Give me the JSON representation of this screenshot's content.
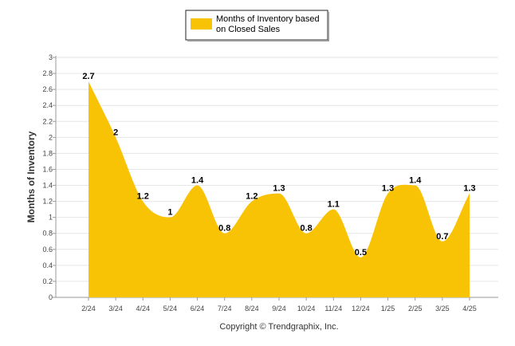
{
  "chart_data": {
    "type": "area",
    "categories": [
      "2/24",
      "3/24",
      "4/24",
      "5/24",
      "6/24",
      "7/24",
      "8/24",
      "9/24",
      "10/24",
      "11/24",
      "12/24",
      "1/25",
      "2/25",
      "3/25",
      "4/25"
    ],
    "series": [
      {
        "name": "Months of Inventory based on Closed Sales",
        "values": [
          2.7,
          2,
          1.2,
          1,
          1.4,
          0.8,
          1.2,
          1.3,
          0.8,
          1.1,
          0.5,
          1.3,
          1.4,
          0.7,
          1.3
        ],
        "labels": [
          "2.7",
          "2",
          "1.2",
          "1",
          "1.4",
          "0.8",
          "1.2",
          "1.3",
          "0.8",
          "1.1",
          "0.5",
          "1.3",
          "1.4",
          "0.7",
          "1.3"
        ],
        "color": "#F9C305"
      }
    ],
    "ylabel": "Months of Inventory",
    "ylim": [
      0,
      3
    ],
    "yticks": [
      "0",
      "0.2",
      "0.4",
      "0.6",
      "0.8",
      "1",
      "1.2",
      "1.4",
      "1.6",
      "1.8",
      "2",
      "2.2",
      "2.4",
      "2.6",
      "2.8",
      "3"
    ],
    "grid": true,
    "legend_position": "top-center"
  },
  "legend": {
    "line1": "Months of Inventory based",
    "line2": "on Closed Sales"
  },
  "footer": "Copyright © Trendgraphix, Inc."
}
